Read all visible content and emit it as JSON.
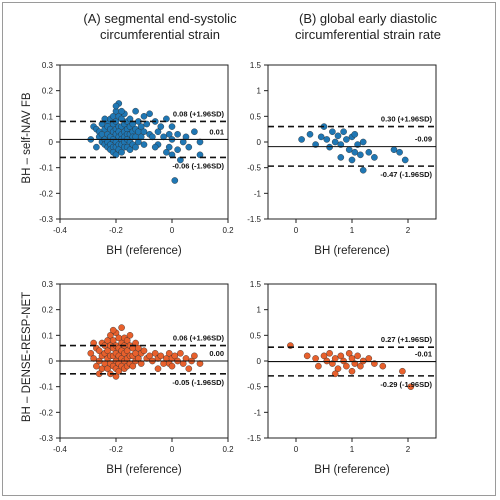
{
  "colors": {
    "blue": "#1f77b4",
    "orange": "#e8602c",
    "line": "#111111"
  },
  "titles": {
    "A_line1": "(A) segmental end-systolic",
    "A_line2": "circumferential strain",
    "B_line1": "(B) global early diastolic",
    "B_line2": "circumferential strain rate"
  },
  "row_labels": {
    "top": "BH – self-NAV FB",
    "bottom": "BH – DENSE-RESP-NET"
  },
  "chart_data": [
    {
      "id": "A_top",
      "type": "scatter",
      "panel": "A",
      "xlabel": "BH (reference)",
      "ylabel": "BH – self-NAV FB",
      "xlim": [
        -0.4,
        0.2
      ],
      "ylim": [
        -0.3,
        0.3
      ],
      "xticks": [
        -0.4,
        -0.2,
        0,
        0.2
      ],
      "xtick_labels": [
        "-0.4",
        "-0.2",
        "0",
        "0.2"
      ],
      "yticks": [
        -0.3,
        -0.2,
        -0.1,
        0,
        0.1,
        0.2,
        0.3
      ],
      "ytick_labels": [
        "-0.3",
        "-0.2",
        "-0.1",
        "0",
        "0.1",
        "0.2",
        "0.3"
      ],
      "color": "blue",
      "mean": 0.01,
      "upper": 0.08,
      "lower": -0.06,
      "mean_label": "0.01",
      "upper_label": "0.08 (+1.96SD)",
      "lower_label": "-0.06 (-1.96SD)",
      "points": [
        [
          -0.28,
          0.06
        ],
        [
          -0.27,
          0.05
        ],
        [
          -0.26,
          0.04
        ],
        [
          -0.26,
          0.02
        ],
        [
          -0.25,
          0.07
        ],
        [
          -0.25,
          0.03
        ],
        [
          -0.25,
          0.0
        ],
        [
          -0.24,
          0.05
        ],
        [
          -0.24,
          0.01
        ],
        [
          -0.24,
          -0.01
        ],
        [
          -0.23,
          0.08
        ],
        [
          -0.23,
          0.06
        ],
        [
          -0.23,
          0.03
        ],
        [
          -0.23,
          0.0
        ],
        [
          -0.23,
          -0.02
        ],
        [
          -0.22,
          0.09
        ],
        [
          -0.22,
          0.05
        ],
        [
          -0.22,
          0.02
        ],
        [
          -0.22,
          -0.01
        ],
        [
          -0.22,
          -0.03
        ],
        [
          -0.21,
          0.1
        ],
        [
          -0.21,
          0.07
        ],
        [
          -0.21,
          0.04
        ],
        [
          -0.21,
          0.01
        ],
        [
          -0.21,
          -0.02
        ],
        [
          -0.21,
          -0.04
        ],
        [
          -0.2,
          0.12
        ],
        [
          -0.2,
          0.08
        ],
        [
          -0.2,
          0.05
        ],
        [
          -0.2,
          0.03
        ],
        [
          -0.2,
          0.0
        ],
        [
          -0.2,
          -0.02
        ],
        [
          -0.2,
          -0.05
        ],
        [
          -0.19,
          0.15
        ],
        [
          -0.19,
          0.1
        ],
        [
          -0.19,
          0.06
        ],
        [
          -0.19,
          0.04
        ],
        [
          -0.19,
          0.02
        ],
        [
          -0.19,
          -0.01
        ],
        [
          -0.19,
          -0.03
        ],
        [
          -0.18,
          0.09
        ],
        [
          -0.18,
          0.06
        ],
        [
          -0.18,
          0.03
        ],
        [
          -0.18,
          0.01
        ],
        [
          -0.18,
          -0.01
        ],
        [
          -0.18,
          -0.04
        ],
        [
          -0.17,
          0.11
        ],
        [
          -0.17,
          0.07
        ],
        [
          -0.17,
          0.04
        ],
        [
          -0.17,
          0.02
        ],
        [
          -0.17,
          0.0
        ],
        [
          -0.17,
          -0.02
        ],
        [
          -0.16,
          0.08
        ],
        [
          -0.16,
          0.05
        ],
        [
          -0.16,
          0.03
        ],
        [
          -0.16,
          0.01
        ],
        [
          -0.16,
          -0.02
        ],
        [
          -0.15,
          0.09
        ],
        [
          -0.15,
          0.06
        ],
        [
          -0.15,
          0.03
        ],
        [
          -0.15,
          0.0
        ],
        [
          -0.15,
          -0.03
        ],
        [
          -0.14,
          0.07
        ],
        [
          -0.14,
          0.04
        ],
        [
          -0.14,
          0.02
        ],
        [
          -0.14,
          -0.01
        ],
        [
          -0.13,
          0.12
        ],
        [
          -0.13,
          0.05
        ],
        [
          -0.13,
          0.02
        ],
        [
          -0.13,
          -0.02
        ],
        [
          -0.12,
          0.08
        ],
        [
          -0.12,
          0.04
        ],
        [
          -0.12,
          0.0
        ],
        [
          -0.11,
          0.06
        ],
        [
          -0.11,
          0.02
        ],
        [
          -0.1,
          0.1
        ],
        [
          -0.1,
          0.04
        ],
        [
          -0.1,
          -0.01
        ],
        [
          -0.09,
          0.07
        ],
        [
          -0.08,
          0.03
        ],
        [
          -0.08,
          0.11
        ],
        [
          -0.07,
          0.02
        ],
        [
          -0.06,
          0.08
        ],
        [
          -0.05,
          0.04
        ],
        [
          -0.05,
          -0.01
        ],
        [
          -0.04,
          0.06
        ],
        [
          -0.03,
          0.02
        ],
        [
          -0.02,
          0.09
        ],
        [
          -0.02,
          -0.04
        ],
        [
          -0.01,
          0.03
        ],
        [
          -0.01,
          -0.02
        ],
        [
          0.0,
          0.06
        ],
        [
          0.0,
          0.01
        ],
        [
          0.0,
          -0.05
        ],
        [
          0.01,
          -0.15
        ],
        [
          0.02,
          0.03
        ],
        [
          0.02,
          -0.03
        ],
        [
          0.03,
          -0.07
        ],
        [
          0.04,
          0.0
        ],
        [
          0.05,
          0.02
        ],
        [
          0.06,
          -0.02
        ],
        [
          0.08,
          0.04
        ],
        [
          0.1,
          0.0
        ],
        [
          0.1,
          -0.05
        ],
        [
          -0.29,
          0.01
        ],
        [
          -0.27,
          -0.02
        ],
        [
          -0.2,
          0.14
        ],
        [
          -0.18,
          0.12
        ],
        [
          -0.24,
          0.09
        ],
        [
          -0.06,
          -0.02
        ]
      ]
    },
    {
      "id": "B_top",
      "type": "scatter",
      "panel": "B",
      "xlabel": "BH (reference)",
      "ylabel": "",
      "xlim": [
        -0.5,
        2.5
      ],
      "ylim": [
        -1.5,
        1.5
      ],
      "xticks": [
        0,
        1,
        2
      ],
      "xtick_labels": [
        "0",
        "1",
        "2"
      ],
      "yticks": [
        -1.5,
        -1,
        -0.5,
        0,
        0.5,
        1,
        1.5
      ],
      "ytick_labels": [
        "-1.5",
        "-1",
        "-0.5",
        "0",
        "0.5",
        "1",
        "1.5"
      ],
      "color": "blue",
      "mean": -0.09,
      "upper": 0.3,
      "lower": -0.47,
      "mean_label": "-0.09",
      "upper_label": "0.30 (+1.96SD)",
      "lower_label": "-0.47 (-1.96SD)",
      "points": [
        [
          0.1,
          0.05
        ],
        [
          0.25,
          0.15
        ],
        [
          0.35,
          -0.05
        ],
        [
          0.45,
          0.1
        ],
        [
          0.55,
          0.05
        ],
        [
          0.6,
          -0.1
        ],
        [
          0.65,
          0.2
        ],
        [
          0.7,
          0.0
        ],
        [
          0.75,
          0.12
        ],
        [
          0.8,
          -0.05
        ],
        [
          0.85,
          0.2
        ],
        [
          0.9,
          0.05
        ],
        [
          0.95,
          -0.15
        ],
        [
          1.0,
          0.1
        ],
        [
          1.05,
          0.15
        ],
        [
          1.05,
          -0.2
        ],
        [
          1.1,
          -0.05
        ],
        [
          1.15,
          -0.25
        ],
        [
          1.2,
          0.0
        ],
        [
          1.3,
          -0.2
        ],
        [
          1.4,
          -0.3
        ],
        [
          1.2,
          -0.55
        ],
        [
          1.75,
          -0.15
        ],
        [
          1.85,
          -0.2
        ],
        [
          1.95,
          -0.35
        ],
        [
          0.5,
          0.3
        ],
        [
          0.8,
          -0.3
        ],
        [
          1.0,
          -0.35
        ]
      ]
    },
    {
      "id": "A_bottom",
      "type": "scatter",
      "panel": "A",
      "xlabel": "BH (reference)",
      "ylabel": "BH – DENSE-RESP-NET",
      "xlim": [
        -0.4,
        0.2
      ],
      "ylim": [
        -0.3,
        0.3
      ],
      "xticks": [
        -0.4,
        -0.2,
        0,
        0.2
      ],
      "xtick_labels": [
        "-0.4",
        "-0.2",
        "0",
        "0.2"
      ],
      "yticks": [
        -0.3,
        -0.2,
        -0.1,
        0,
        0.1,
        0.2,
        0.3
      ],
      "ytick_labels": [
        "-0.3",
        "-0.2",
        "-0.1",
        "0",
        "0.1",
        "0.2",
        "0.3"
      ],
      "color": "orange",
      "mean": 0.0,
      "upper": 0.06,
      "lower": -0.05,
      "mean_label": "0.00",
      "upper_label": "0.06 (+1.96SD)",
      "lower_label": "-0.05 (-1.96SD)",
      "points": [
        [
          -0.29,
          0.03
        ],
        [
          -0.28,
          0.01
        ],
        [
          -0.27,
          0.05
        ],
        [
          -0.27,
          -0.02
        ],
        [
          -0.26,
          0.04
        ],
        [
          -0.26,
          0.0
        ],
        [
          -0.25,
          0.07
        ],
        [
          -0.25,
          0.02
        ],
        [
          -0.25,
          -0.03
        ],
        [
          -0.24,
          0.06
        ],
        [
          -0.24,
          0.03
        ],
        [
          -0.24,
          -0.01
        ],
        [
          -0.23,
          0.08
        ],
        [
          -0.23,
          0.04
        ],
        [
          -0.23,
          0.01
        ],
        [
          -0.23,
          -0.03
        ],
        [
          -0.22,
          0.1
        ],
        [
          -0.22,
          0.06
        ],
        [
          -0.22,
          0.02
        ],
        [
          -0.22,
          -0.01
        ],
        [
          -0.22,
          -0.05
        ],
        [
          -0.21,
          0.08
        ],
        [
          -0.21,
          0.05
        ],
        [
          -0.21,
          0.02
        ],
        [
          -0.21,
          -0.02
        ],
        [
          -0.2,
          0.11
        ],
        [
          -0.2,
          0.06
        ],
        [
          -0.2,
          0.03
        ],
        [
          -0.2,
          0.0
        ],
        [
          -0.2,
          -0.03
        ],
        [
          -0.2,
          -0.06
        ],
        [
          -0.19,
          0.09
        ],
        [
          -0.19,
          0.05
        ],
        [
          -0.19,
          0.02
        ],
        [
          -0.19,
          -0.01
        ],
        [
          -0.19,
          -0.04
        ],
        [
          -0.18,
          0.13
        ],
        [
          -0.18,
          0.07
        ],
        [
          -0.18,
          0.04
        ],
        [
          -0.18,
          0.01
        ],
        [
          -0.18,
          -0.02
        ],
        [
          -0.17,
          0.09
        ],
        [
          -0.17,
          0.06
        ],
        [
          -0.17,
          0.03
        ],
        [
          -0.17,
          0.0
        ],
        [
          -0.17,
          -0.03
        ],
        [
          -0.16,
          0.08
        ],
        [
          -0.16,
          0.04
        ],
        [
          -0.16,
          0.01
        ],
        [
          -0.16,
          -0.02
        ],
        [
          -0.15,
          0.1
        ],
        [
          -0.15,
          0.06
        ],
        [
          -0.15,
          0.02
        ],
        [
          -0.15,
          -0.01
        ],
        [
          -0.14,
          0.05
        ],
        [
          -0.14,
          0.02
        ],
        [
          -0.14,
          -0.02
        ],
        [
          -0.13,
          0.07
        ],
        [
          -0.13,
          0.03
        ],
        [
          -0.13,
          0.0
        ],
        [
          -0.12,
          0.05
        ],
        [
          -0.12,
          0.01
        ],
        [
          -0.11,
          0.03
        ],
        [
          -0.11,
          -0.01
        ],
        [
          -0.1,
          0.04
        ],
        [
          -0.09,
          0.01
        ],
        [
          -0.08,
          0.02
        ],
        [
          -0.07,
          0.0
        ],
        [
          -0.06,
          0.03
        ],
        [
          -0.05,
          0.01
        ],
        [
          -0.04,
          0.02
        ],
        [
          -0.03,
          -0.01
        ],
        [
          -0.02,
          0.01
        ],
        [
          -0.01,
          0.03
        ],
        [
          -0.01,
          -0.01
        ],
        [
          0.0,
          0.01
        ],
        [
          0.0,
          -0.02
        ],
        [
          0.01,
          0.02
        ],
        [
          0.02,
          0.0
        ],
        [
          0.03,
          0.03
        ],
        [
          0.04,
          -0.01
        ],
        [
          0.05,
          0.01
        ],
        [
          0.06,
          -0.03
        ],
        [
          0.07,
          0.0
        ],
        [
          0.08,
          0.02
        ],
        [
          0.1,
          -0.01
        ],
        [
          -0.28,
          0.07
        ],
        [
          -0.26,
          -0.05
        ],
        [
          -0.21,
          0.12
        ],
        [
          -0.05,
          -0.03
        ]
      ]
    },
    {
      "id": "B_bottom",
      "type": "scatter",
      "panel": "B",
      "xlabel": "BH (reference)",
      "ylabel": "",
      "xlim": [
        -0.5,
        2.5
      ],
      "ylim": [
        -1.5,
        1.5
      ],
      "xticks": [
        0,
        1,
        2
      ],
      "xtick_labels": [
        "0",
        "1",
        "2"
      ],
      "yticks": [
        -1.5,
        -1,
        -0.5,
        0,
        0.5,
        1,
        1.5
      ],
      "ytick_labels": [
        "-1.5",
        "-1",
        "-0.5",
        "0",
        "0.5",
        "1",
        "1.5"
      ],
      "color": "orange",
      "mean": -0.01,
      "upper": 0.27,
      "lower": -0.29,
      "mean_label": "-0.01",
      "upper_label": "0.27 (+1.96SD)",
      "lower_label": "-0.29 (-1.96SD)",
      "points": [
        [
          -0.1,
          0.3
        ],
        [
          0.2,
          0.1
        ],
        [
          0.35,
          0.05
        ],
        [
          0.4,
          -0.1
        ],
        [
          0.5,
          0.1
        ],
        [
          0.55,
          0.0
        ],
        [
          0.6,
          0.15
        ],
        [
          0.65,
          -0.05
        ],
        [
          0.7,
          0.05
        ],
        [
          0.75,
          -0.15
        ],
        [
          0.8,
          0.1
        ],
        [
          0.85,
          0.0
        ],
        [
          0.9,
          -0.1
        ],
        [
          0.95,
          0.15
        ],
        [
          1.0,
          0.05
        ],
        [
          1.05,
          -0.05
        ],
        [
          1.1,
          0.1
        ],
        [
          1.15,
          -0.1
        ],
        [
          1.2,
          0.0
        ],
        [
          1.3,
          0.05
        ],
        [
          1.4,
          -0.05
        ],
        [
          1.55,
          -0.1
        ],
        [
          1.9,
          -0.2
        ],
        [
          2.05,
          -0.5
        ],
        [
          0.7,
          -0.25
        ],
        [
          1.0,
          -0.2
        ]
      ]
    }
  ]
}
